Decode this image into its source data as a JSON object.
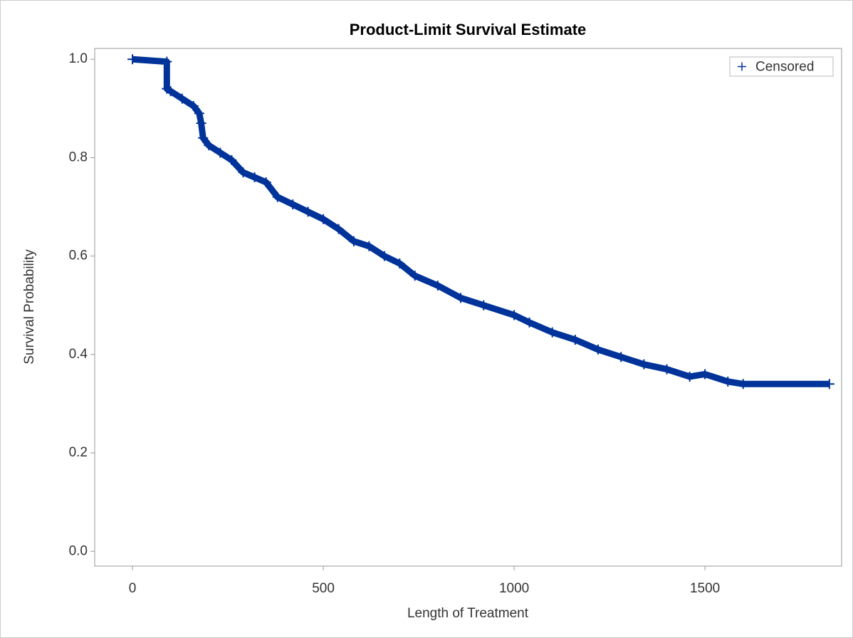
{
  "chart_data": {
    "type": "line",
    "title": "Product-Limit Survival Estimate",
    "x_label": "Length of Treatment",
    "y_label": "Survival Probability",
    "x": [
      0,
      90,
      90,
      100,
      130,
      160,
      175,
      180,
      185,
      200,
      230,
      260,
      290,
      320,
      350,
      380,
      420,
      460,
      500,
      540,
      580,
      620,
      660,
      700,
      740,
      800,
      860,
      920,
      1000,
      1040,
      1100,
      1160,
      1220,
      1280,
      1340,
      1400,
      1460,
      1500,
      1560,
      1600,
      1826
    ],
    "series": [
      {
        "name": "Censored",
        "color": "#00339a",
        "values": [
          1.0,
          0.995,
          0.94,
          0.935,
          0.92,
          0.905,
          0.89,
          0.87,
          0.84,
          0.825,
          0.81,
          0.795,
          0.77,
          0.76,
          0.75,
          0.72,
          0.705,
          0.69,
          0.675,
          0.655,
          0.63,
          0.62,
          0.6,
          0.585,
          0.56,
          0.54,
          0.515,
          0.5,
          0.48,
          0.465,
          0.445,
          0.43,
          0.41,
          0.395,
          0.38,
          0.37,
          0.355,
          0.36,
          0.345,
          0.34,
          0.34
        ]
      }
    ],
    "xlim": [
      -99,
      1858
    ],
    "ylim": [
      -0.03,
      1.022
    ],
    "xticks": [
      0,
      500,
      1000,
      1500
    ],
    "yticks": [
      {
        "value": 0,
        "label": "0.0"
      },
      {
        "value": 0.2,
        "label": "0.2"
      },
      {
        "value": 0.4,
        "label": "0.4"
      },
      {
        "value": 0.6,
        "label": "0.6"
      },
      {
        "value": 0.8,
        "label": "0.8"
      },
      {
        "value": 1,
        "label": "1.0"
      }
    ],
    "legend": "top-right"
  }
}
